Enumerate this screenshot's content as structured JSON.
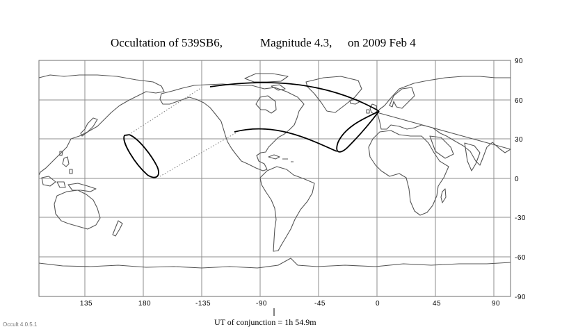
{
  "title": {
    "part1": "Occultation  of  539SB6,",
    "part2": "Magnitude 4.3,",
    "part3": "on  2009 Feb  4"
  },
  "axes": {
    "longitude_labels": [
      "135",
      "180",
      "-135",
      "-90",
      "-45",
      "0",
      "45",
      "90"
    ],
    "latitude_labels": [
      "90",
      "60",
      "30",
      "0",
      "-30",
      "-60",
      "-90"
    ]
  },
  "conjunction": {
    "label": "UT of conjunction =  1h 54.9m"
  },
  "version": "Occult 4.0.5.1"
}
